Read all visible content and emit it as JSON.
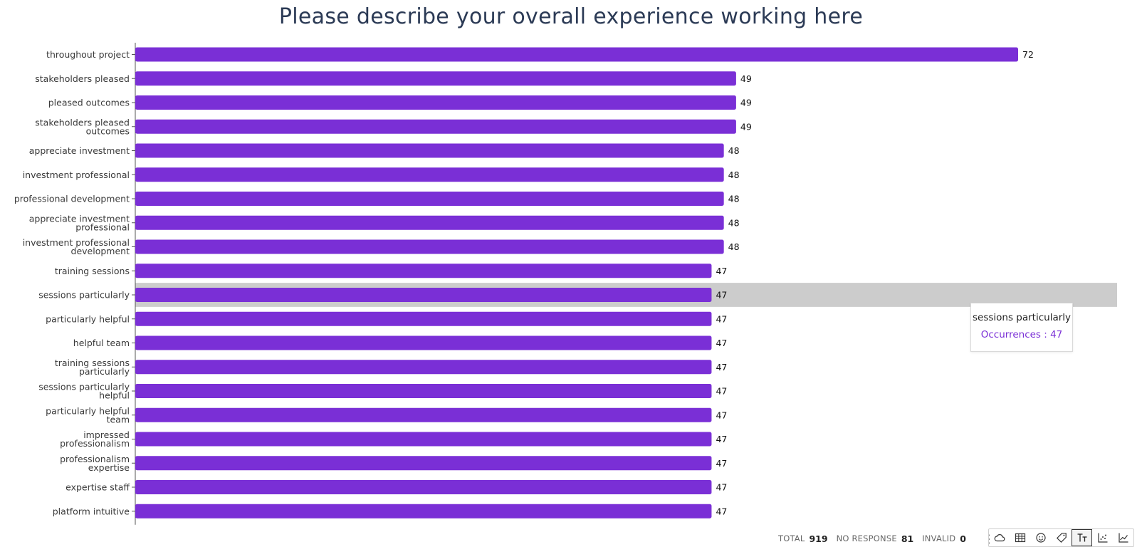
{
  "chart_data": {
    "type": "bar",
    "orientation": "horizontal",
    "title": "Please describe your overall experience working here",
    "categories": [
      "throughout project",
      "stakeholders pleased",
      "pleased outcomes",
      "stakeholders pleased outcomes",
      "appreciate investment",
      "investment professional",
      "professional development",
      "appreciate investment professional",
      "investment professional development",
      "training sessions",
      "sessions particularly",
      "particularly helpful",
      "helpful team",
      "training sessions particularly",
      "sessions particularly helpful",
      "particularly helpful team",
      "impressed professionalism",
      "professionalism expertise",
      "expertise staff",
      "platform intuitive"
    ],
    "values": [
      72,
      49,
      49,
      49,
      48,
      48,
      48,
      48,
      48,
      47,
      47,
      47,
      47,
      47,
      47,
      47,
      47,
      47,
      47,
      47
    ],
    "highlighted_index": 10,
    "bar_color": "#7a2fd6",
    "highlight_color": "#cccccc",
    "grid": false
  },
  "tooltip": {
    "title": "sessions particularly",
    "value_text": "Occurrences : 47",
    "value_color": "#7a2fd6"
  },
  "footer": {
    "total_label": "TOTAL",
    "total_value": "919",
    "no_response_label": "NO RESPONSE",
    "no_response_value": "81",
    "invalid_label": "INVALID",
    "invalid_value": "0",
    "more_icon": "kebab-menu-icon"
  },
  "toolbar": {
    "buttons": [
      {
        "name": "cloud-icon"
      },
      {
        "name": "table-icon"
      },
      {
        "name": "smiley-icon"
      },
      {
        "name": "tag-icon"
      },
      {
        "name": "text-size-icon",
        "active": true
      },
      {
        "name": "scatter-chart-icon"
      },
      {
        "name": "line-chart-icon"
      }
    ]
  }
}
